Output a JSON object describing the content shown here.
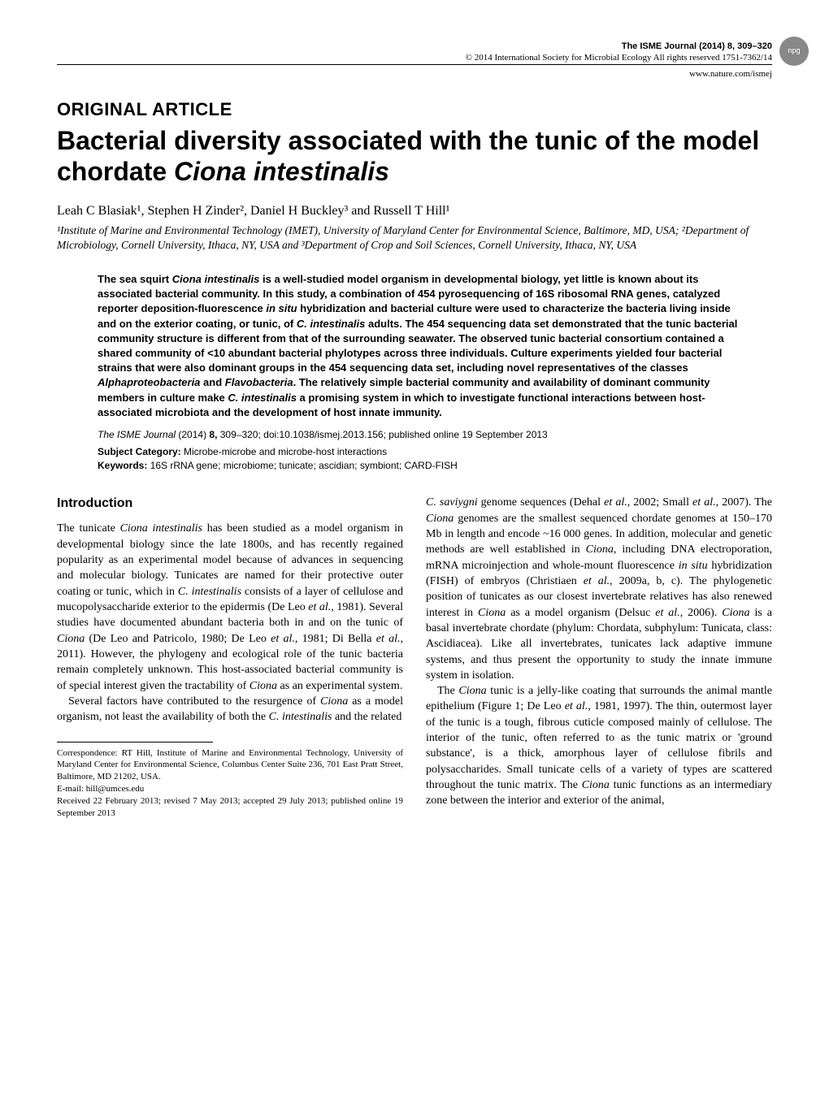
{
  "header": {
    "journal_line": "The ISME Journal (2014) 8, 309–320",
    "copyright_line": "© 2014 International Society for Microbial Ecology  All rights reserved 1751-7362/14",
    "url": "www.nature.com/ismej",
    "badge": "npg"
  },
  "article": {
    "type": "ORIGINAL ARTICLE",
    "title_prefix": "Bacterial diversity associated with the tunic of the model chordate ",
    "title_species": "Ciona intestinalis",
    "authors": "Leah C Blasiak¹, Stephen H Zinder², Daniel H Buckley³ and Russell T Hill¹",
    "affiliations": "¹Institute of Marine and Environmental Technology (IMET), University of Maryland Center for Environmental Science, Baltimore, MD, USA; ²Department of Microbiology, Cornell University, Ithaca, NY, USA and ³Department of Crop and Soil Sciences, Cornell University, Ithaca, NY, USA"
  },
  "abstract": {
    "text_parts": [
      {
        "t": "The sea squirt ",
        "i": false
      },
      {
        "t": "Ciona intestinalis",
        "i": true
      },
      {
        "t": " is a well-studied model organism in developmental biology, yet little is known about its associated bacterial community. In this study, a combination of 454 pyrosequencing of 16S ribosomal RNA genes, catalyzed reporter deposition-fluorescence ",
        "i": false
      },
      {
        "t": "in situ",
        "i": true
      },
      {
        "t": " hybridization and bacterial culture were used to characterize the bacteria living inside and on the exterior coating, or tunic, of ",
        "i": false
      },
      {
        "t": "C. intestinalis",
        "i": true
      },
      {
        "t": " adults. The 454 sequencing data set demonstrated that the tunic bacterial community structure is different from that of the surrounding seawater. The observed tunic bacterial consortium contained a shared community of <10 abundant bacterial phylotypes across three individuals. Culture experiments yielded four bacterial strains that were also dominant groups in the 454 sequencing data set, including novel representatives of the classes ",
        "i": false
      },
      {
        "t": "Alphaproteobacteria",
        "i": true
      },
      {
        "t": " and ",
        "i": false
      },
      {
        "t": "Flavobacteria",
        "i": true
      },
      {
        "t": ". The relatively simple bacterial community and availability of dominant community members in culture make ",
        "i": false
      },
      {
        "t": "C. intestinalis",
        "i": true
      },
      {
        "t": " a promising system in which to investigate functional interactions between host-associated microbiota and the development of host innate immunity.",
        "i": false
      }
    ],
    "citation_journal": "The ISME Journal",
    "citation_rest": " (2014) ",
    "citation_vol": "8,",
    "citation_pages": " 309–320; doi:10.1038/ismej.2013.156; published online 19 September 2013",
    "subject_label": "Subject Category:",
    "subject_text": " Microbe-microbe and microbe-host interactions",
    "keywords_label": "Keywords:",
    "keywords_text": " 16S rRNA gene; microbiome; tunicate; ascidian; symbiont; CARD-FISH"
  },
  "body": {
    "intro_heading": "Introduction",
    "left_p1_parts": [
      {
        "t": "The tunicate ",
        "i": false
      },
      {
        "t": "Ciona intestinalis",
        "i": true
      },
      {
        "t": " has been studied as a model organism in developmental biology since the late 1800s, and has recently regained popularity as an experimental model because of advances in sequencing and molecular biology. Tunicates are named for their protective outer coating or tunic, which in ",
        "i": false
      },
      {
        "t": "C. intestinalis",
        "i": true
      },
      {
        "t": " consists of a layer of cellulose and mucopolysaccharide exterior to the epidermis (De Leo ",
        "i": false
      },
      {
        "t": "et al.",
        "i": true
      },
      {
        "t": ", 1981). Several studies have documented abundant bacteria both in and on the tunic of ",
        "i": false
      },
      {
        "t": "Ciona",
        "i": true
      },
      {
        "t": " (De Leo and Patricolo, 1980; De Leo ",
        "i": false
      },
      {
        "t": "et al.",
        "i": true
      },
      {
        "t": ", 1981; Di Bella ",
        "i": false
      },
      {
        "t": "et al.",
        "i": true
      },
      {
        "t": ", 2011). However, the phylogeny and ecological role of the tunic bacteria remain completely unknown. This host-associated bacterial community is of special interest given the tractability of ",
        "i": false
      },
      {
        "t": "Ciona",
        "i": true
      },
      {
        "t": " as an experimental system.",
        "i": false
      }
    ],
    "left_p2_parts": [
      {
        "t": "Several factors have contributed to the resurgence of ",
        "i": false
      },
      {
        "t": "Ciona",
        "i": true
      },
      {
        "t": " as a model organism, not least the availability of both the ",
        "i": false
      },
      {
        "t": "C. intestinalis",
        "i": true
      },
      {
        "t": " and the related",
        "i": false
      }
    ],
    "right_p1_parts": [
      {
        "t": "C. saviygni",
        "i": true
      },
      {
        "t": " genome sequences (Dehal ",
        "i": false
      },
      {
        "t": "et al.",
        "i": true
      },
      {
        "t": ", 2002; Small ",
        "i": false
      },
      {
        "t": "et al.",
        "i": true
      },
      {
        "t": ", 2007). The ",
        "i": false
      },
      {
        "t": "Ciona",
        "i": true
      },
      {
        "t": " genomes are the smallest sequenced chordate genomes at 150–170 Mb in length and encode ~16 000 genes. In addition, molecular and genetic methods are well established in ",
        "i": false
      },
      {
        "t": "Ciona,",
        "i": true
      },
      {
        "t": " including DNA electroporation, mRNA microinjection and whole-mount fluorescence ",
        "i": false
      },
      {
        "t": "in situ",
        "i": true
      },
      {
        "t": " hybridization (FISH) of embryos (Christiaen ",
        "i": false
      },
      {
        "t": "et al.",
        "i": true
      },
      {
        "t": ", 2009a, b, c). The phylogenetic position of tunicates as our closest invertebrate relatives has also renewed interest in ",
        "i": false
      },
      {
        "t": "Ciona",
        "i": true
      },
      {
        "t": " as a model organism (Delsuc ",
        "i": false
      },
      {
        "t": "et al.",
        "i": true
      },
      {
        "t": ", 2006). ",
        "i": false
      },
      {
        "t": "Ciona",
        "i": true
      },
      {
        "t": " is a basal invertebrate chordate (phylum: Chordata, subphylum: Tunicata, class: Ascidiacea). Like all invertebrates, tunicates lack adaptive immune systems, and thus present the opportunity to study the innate immune system in isolation.",
        "i": false
      }
    ],
    "right_p2_parts": [
      {
        "t": "The ",
        "i": false
      },
      {
        "t": "Ciona",
        "i": true
      },
      {
        "t": " tunic is a jelly-like coating that surrounds the animal mantle epithelium (Figure 1; De Leo ",
        "i": false
      },
      {
        "t": "et al.",
        "i": true
      },
      {
        "t": ", 1981, 1997). The thin, outermost layer of the tunic is a tough, fibrous cuticle composed mainly of cellulose. The interior of the tunic, often referred to as the tunic matrix or 'ground substance', is a thick, amorphous layer of cellulose fibrils and polysaccharides. Small tunicate cells of a variety of types are scattered throughout the tunic matrix. The ",
        "i": false
      },
      {
        "t": "Ciona",
        "i": true
      },
      {
        "t": " tunic functions as an intermediary zone between the interior and exterior of the animal,",
        "i": false
      }
    ]
  },
  "footer": {
    "correspondence": "Correspondence: RT Hill, Institute of Marine and Environmental Technology, University of Maryland Center for Environmental Science, Columbus Center Suite 236, 701 East Pratt Street, Baltimore, MD 21202, USA.",
    "email": "E-mail: hill@umces.edu",
    "received": "Received 22 February 2013; revised 7 May 2013; accepted 29 July 2013; published online 19 September 2013"
  }
}
